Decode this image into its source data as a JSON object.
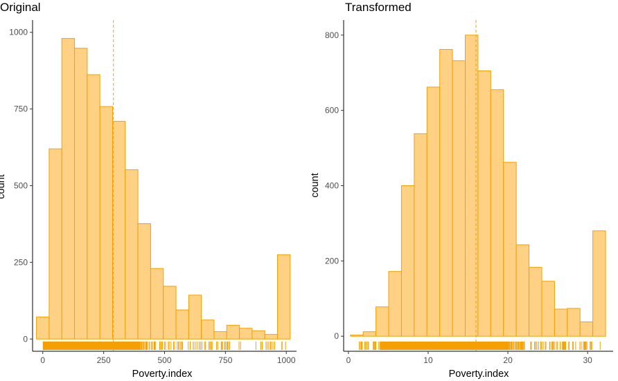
{
  "colors": {
    "bar_fill": "#ffd185",
    "bar_stroke": "#f5a000",
    "rug": "#f5a000",
    "mean_line": "#f5a000",
    "axis": "#000000",
    "tick_label": "#4d4d4d"
  },
  "chart_data": [
    {
      "type": "bar",
      "title": "Original",
      "xlabel": "Poverty.index",
      "ylabel": "count",
      "xlim": [
        -42,
        1042
      ],
      "ylim": [
        -40,
        1040
      ],
      "xticks": [
        0,
        250,
        500,
        750,
        1000
      ],
      "yticks": [
        0,
        250,
        500,
        750,
        1000
      ],
      "xtick_labels": [
        "0",
        "250",
        "500",
        "750",
        "1000"
      ],
      "ytick_labels": [
        "0",
        "250",
        "500",
        "750",
        "1000"
      ],
      "bin_width": 52.1,
      "bin_centers": [
        0,
        52.1,
        104.2,
        156.3,
        208.4,
        260.5,
        312.6,
        364.7,
        416.8,
        468.9,
        521,
        573.1,
        625.2,
        677.3,
        729.4,
        781.5,
        833.6,
        885.7,
        937.8,
        989.9
      ],
      "values": [
        72,
        620,
        980,
        948,
        862,
        758,
        710,
        552,
        376,
        230,
        172,
        95,
        143,
        62,
        24,
        45,
        35,
        27,
        15,
        275
      ],
      "mean": 290,
      "rug": {
        "dense_range": [
          0,
          400
        ],
        "sparse_range": [
          400,
          1000
        ]
      },
      "grid": false,
      "legend": "none"
    },
    {
      "type": "bar",
      "title": "Transformed",
      "xlabel": "Poverty.index",
      "ylabel": "count",
      "xlim": [
        -0.6,
        33.2
      ],
      "ylim": [
        -40,
        840
      ],
      "xticks": [
        0,
        10,
        20,
        30
      ],
      "yticks": [
        0,
        200,
        400,
        600,
        800
      ],
      "xtick_labels": [
        "0",
        "10",
        "20",
        "30"
      ],
      "ytick_labels": [
        "0",
        "200",
        "400",
        "600",
        "800"
      ],
      "bin_width": 1.6,
      "bin_centers": [
        1.05,
        2.65,
        4.25,
        5.85,
        7.45,
        9.05,
        10.65,
        12.25,
        13.85,
        15.45,
        17.05,
        18.65,
        20.25,
        21.85,
        23.45,
        25.05,
        26.65,
        28.25,
        29.85,
        31.45
      ],
      "values": [
        3,
        12,
        78,
        172,
        400,
        538,
        662,
        762,
        732,
        800,
        705,
        655,
        462,
        243,
        183,
        146,
        72,
        74,
        38,
        280
      ],
      "mean": 16,
      "rug": {
        "dense_range": [
          4,
          20
        ],
        "sparse_range": [
          1.3,
          31.7
        ]
      },
      "grid": false,
      "legend": "none"
    }
  ]
}
